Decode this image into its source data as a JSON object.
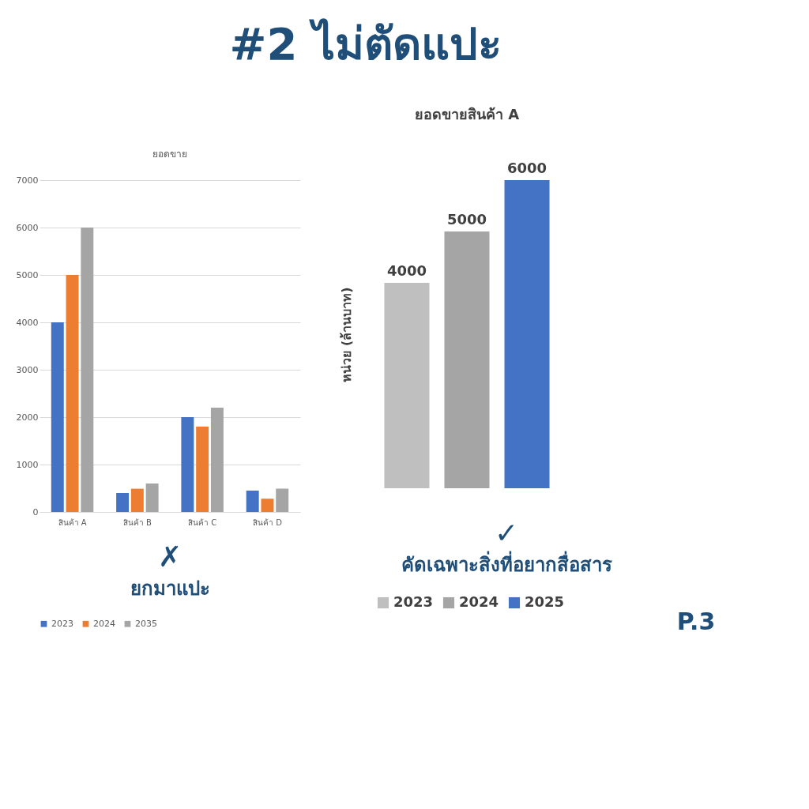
{
  "chart_data": [
    {
      "type": "bar",
      "title": "ยอดขาย",
      "categories": [
        "สินค้า A",
        "สินค้า B",
        "สินค้า C",
        "สินค้า D"
      ],
      "series": [
        {
          "name": "2023",
          "color": "#4472c4",
          "values": [
            4000,
            400,
            2000,
            450
          ]
        },
        {
          "name": "2024",
          "color": "#ed7d31",
          "values": [
            5000,
            490,
            1800,
            280
          ]
        },
        {
          "name": "2035",
          "color": "#a5a5a5",
          "values": [
            6000,
            600,
            2200,
            490
          ]
        }
      ],
      "ylim": [
        0,
        7000
      ],
      "yticks": [
        0,
        1000,
        2000,
        3000,
        4000,
        5000,
        6000,
        7000
      ],
      "grid": "y",
      "legend": "bottom",
      "annotations": [
        "#2 ไม่ตัดแปะ",
        "✗",
        "ยกมาแปะ"
      ]
    },
    {
      "type": "bar",
      "title": "ยอดขายสินค้า A",
      "ylabel": "หน่วย (ล้านบาท)",
      "categories": [
        null
      ],
      "series": [
        {
          "name": "2023",
          "color": "#bfbfbf",
          "values": [
            4000
          ]
        },
        {
          "name": "2024",
          "color": "#a5a5a5",
          "values": [
            5000
          ]
        },
        {
          "name": "2025",
          "color": "#4472c4",
          "values": [
            6000
          ]
        }
      ],
      "data_labels": true,
      "legend": "bottom",
      "annotations": [
        "✓",
        "คัดเฉพาะสิ่งที่อยากสื่อสาร",
        "P.3"
      ]
    }
  ]
}
